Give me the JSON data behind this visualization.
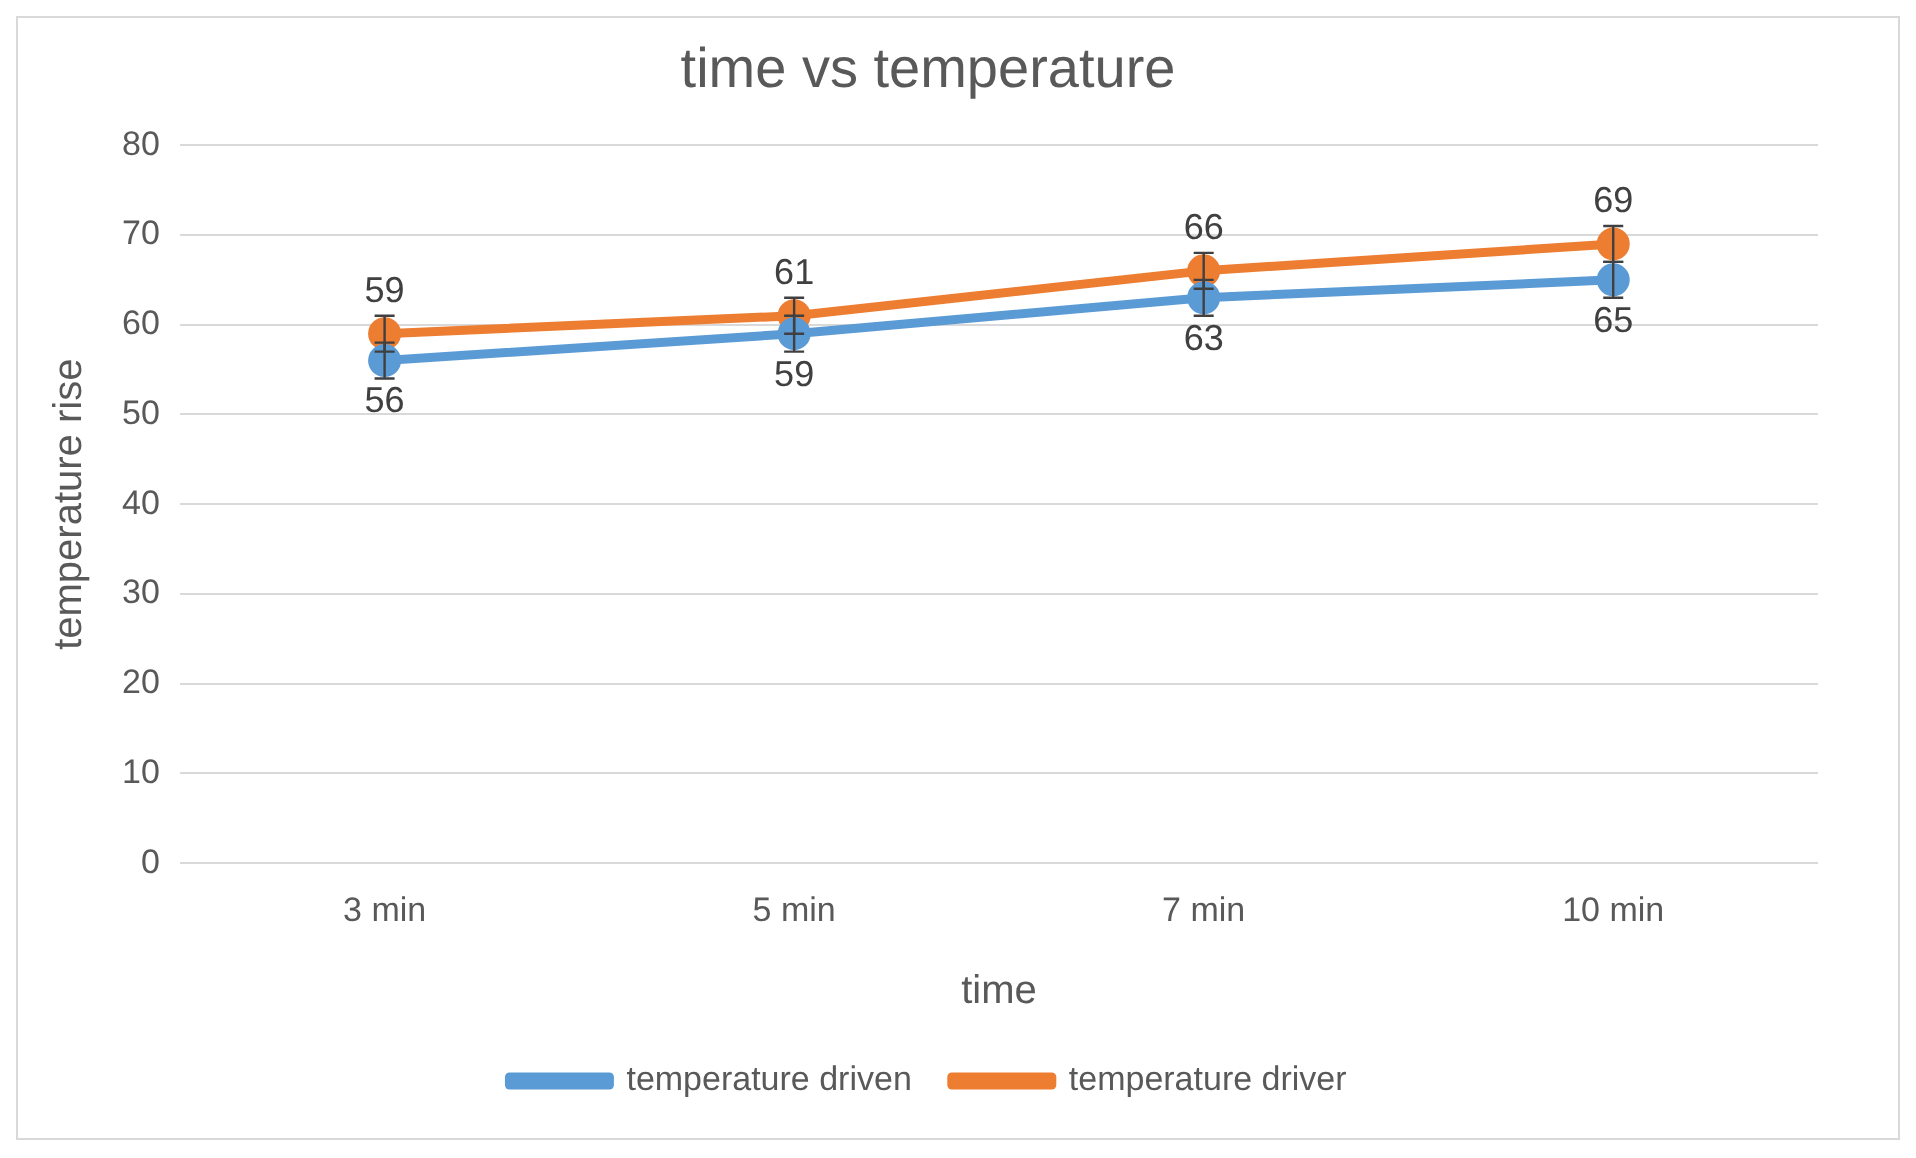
{
  "chart_data": {
    "type": "line",
    "title": "time vs temperature",
    "xlabel": "time",
    "ylabel": "temperature rise",
    "categories": [
      "3 min",
      "5 min",
      "7 min",
      "10 min"
    ],
    "series": [
      {
        "name": "temperature driven",
        "color": "#5b9bd5",
        "values": [
          56,
          59,
          63,
          65
        ],
        "errors": [
          2,
          2,
          2,
          2
        ]
      },
      {
        "name": "temperature driver",
        "color": "#ed7d31",
        "values": [
          59,
          61,
          66,
          69
        ],
        "errors": [
          2,
          2,
          2,
          2
        ]
      }
    ],
    "ylim": [
      0,
      80
    ],
    "yticks": [
      0,
      10,
      20,
      30,
      40,
      50,
      60,
      70,
      80
    ],
    "grid": "y",
    "legend": "bottom",
    "marker": "circle",
    "line_style": "solid",
    "data_labels": true
  }
}
